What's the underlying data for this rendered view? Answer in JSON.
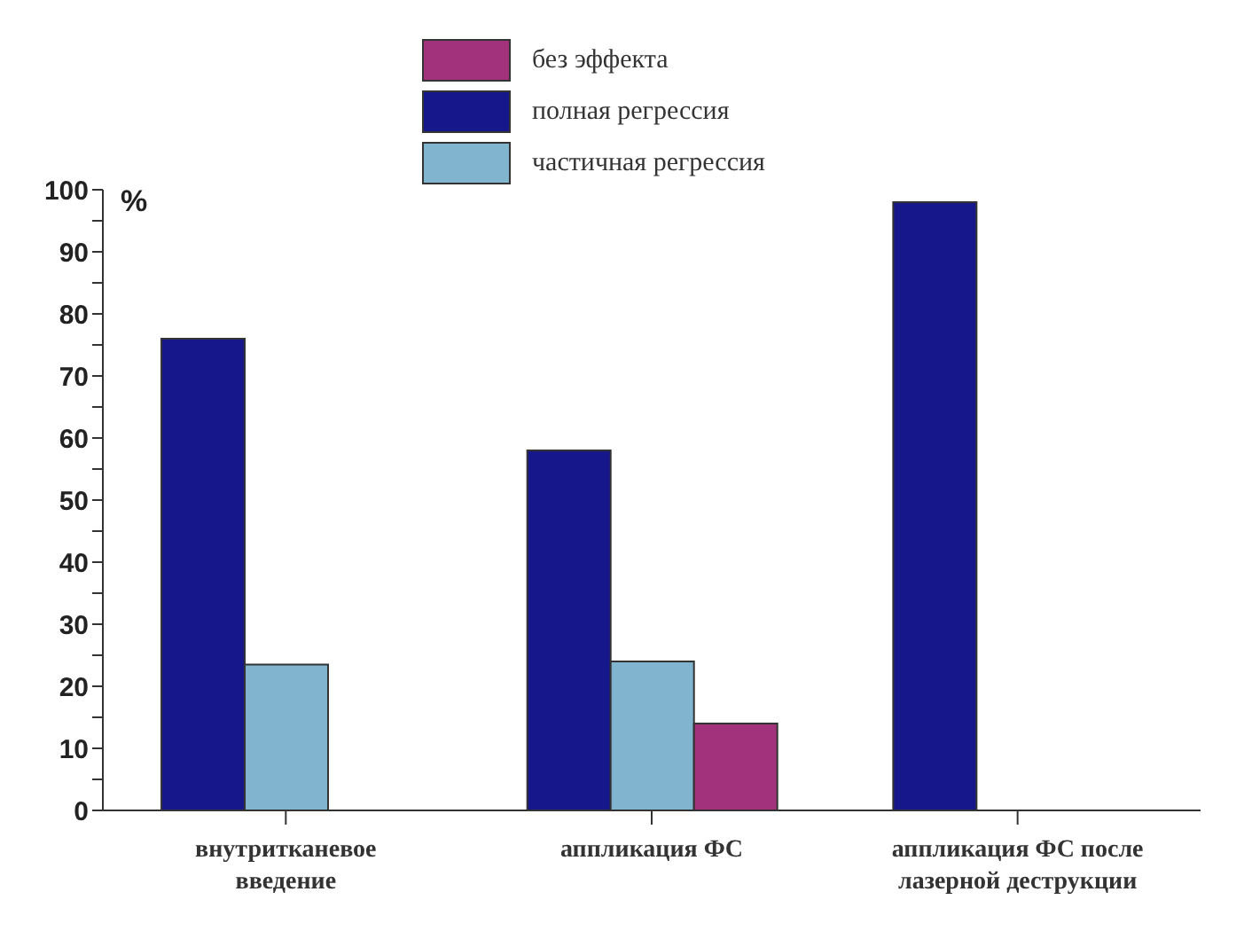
{
  "chart_data": {
    "type": "bar",
    "ylabel": "%",
    "categories": [
      "внутритканевое введение",
      "аппликация ФС",
      "аппликация ФС после лазерной деструкции"
    ],
    "series": [
      {
        "name": "полная регрессия",
        "color": "#15178a",
        "values": [
          76,
          58,
          98
        ]
      },
      {
        "name": "частичная регрессия",
        "color": "#80b4cf",
        "values": [
          23.5,
          24,
          null
        ]
      },
      {
        "name": "без эффекта",
        "color": "#a3327c",
        "values": [
          null,
          14,
          null
        ]
      }
    ],
    "ylim": [
      0,
      100
    ],
    "yticks": [
      0,
      {
        "value": 5,
        "label": null
      },
      10,
      {
        "value": 15,
        "label": null
      },
      20,
      {
        "value": 25,
        "label": null
      },
      30,
      {
        "value": 35,
        "label": null
      },
      40,
      {
        "value": 45,
        "label": null
      },
      50,
      {
        "value": 55,
        "label": null
      },
      60,
      {
        "value": 65,
        "label": null
      },
      70,
      {
        "value": 75,
        "label": null
      },
      80,
      {
        "value": 85,
        "label": null
      },
      90,
      {
        "value": 95,
        "label": null
      },
      100
    ],
    "grid": false,
    "legend": "top"
  }
}
